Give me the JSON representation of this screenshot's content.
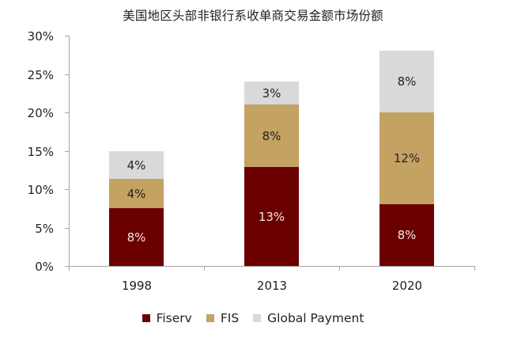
{
  "title": "美国地区头部非银行系收单商交易金额市场份额",
  "colors": {
    "Fiserv": "#6b0000",
    "FIS": "#c4a262",
    "Global Payment": "#d9d9d9",
    "axis": "#a6a6a6"
  },
  "legend": {
    "items": [
      {
        "label": "Fiserv",
        "color": "#6b0000"
      },
      {
        "label": "FIS",
        "color": "#c4a262"
      },
      {
        "label": "Global Payment",
        "color": "#d9d9d9"
      }
    ]
  },
  "axis": {
    "y_ticks": [
      "0%",
      "5%",
      "10%",
      "15%",
      "20%",
      "25%",
      "30%"
    ],
    "x_ticks": [
      "1998",
      "2013",
      "2020"
    ]
  },
  "chart_data": {
    "type": "bar",
    "stacked": true,
    "title": "美国地区头部非银行系收单商交易金额市场份额",
    "xlabel": "",
    "ylabel": "",
    "categories": [
      "1998",
      "2013",
      "2020"
    ],
    "ylim": [
      0,
      30
    ],
    "yticks": [
      0,
      5,
      10,
      15,
      20,
      25,
      30
    ],
    "ytick_format": "percent",
    "grid": false,
    "legend_position": "bottom",
    "series": [
      {
        "name": "Fiserv",
        "color": "#6b0000",
        "values": [
          7.5,
          12.9,
          8.0
        ],
        "labels": [
          "8%",
          "13%",
          "8%"
        ]
      },
      {
        "name": "FIS",
        "color": "#c4a262",
        "values": [
          3.8,
          8.1,
          12.0
        ],
        "labels": [
          "4%",
          "8%",
          "12%"
        ]
      },
      {
        "name": "Global Payment",
        "color": "#d9d9d9",
        "values": [
          3.7,
          3.0,
          8.0
        ],
        "labels": [
          "4%",
          "3%",
          "8%"
        ]
      }
    ]
  }
}
